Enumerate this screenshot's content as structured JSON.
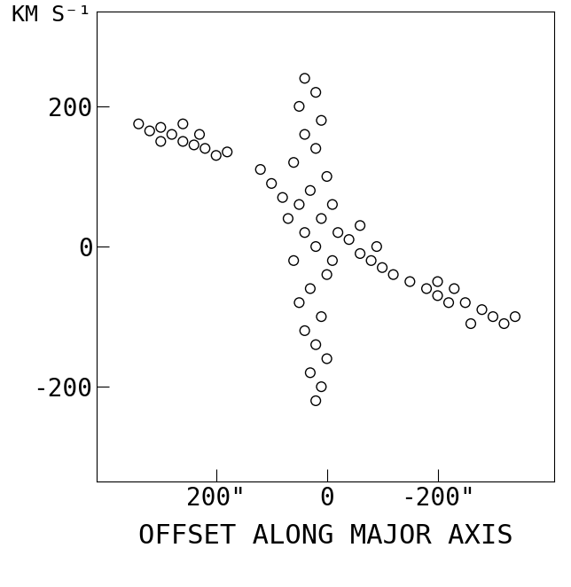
{
  "chart_data": {
    "type": "scatter",
    "x_label": "OFFSET ALONG MAJOR AXIS",
    "y_label": "KM S⁻¹",
    "color": "#000000",
    "marker": "o",
    "x": [
      340,
      320,
      300,
      280,
      260,
      240,
      220,
      200,
      180,
      300,
      260,
      230,
      40,
      20,
      50,
      10,
      40,
      20,
      60,
      0,
      30,
      50,
      10,
      40,
      20,
      60,
      0,
      30,
      50,
      10,
      40,
      20,
      0,
      30,
      10,
      20,
      -10,
      -10,
      70,
      120,
      100,
      80,
      -20,
      -40,
      -60,
      -80,
      -100,
      -60,
      -90,
      -120,
      -150,
      -180,
      -200,
      -220,
      -250,
      -280,
      -300,
      -320,
      -340,
      -200,
      -260,
      -230
    ],
    "values": [
      175,
      165,
      170,
      160,
      150,
      145,
      140,
      130,
      135,
      150,
      175,
      160,
      240,
      220,
      200,
      180,
      160,
      140,
      120,
      100,
      80,
      60,
      40,
      20,
      0,
      -20,
      -40,
      -60,
      -80,
      -100,
      -120,
      -140,
      -160,
      -180,
      -200,
      -220,
      60,
      -20,
      40,
      110,
      90,
      70,
      20,
      10,
      -10,
      -20,
      -30,
      30,
      0,
      -40,
      -50,
      -60,
      -70,
      -80,
      -80,
      -90,
      -100,
      -110,
      -100,
      -50,
      -110,
      -60
    ],
    "xlim": [
      415,
      -410
    ],
    "ylim": [
      -335,
      335
    ],
    "xticks": [
      {
        "value": 200,
        "label": "200\""
      },
      0,
      {
        "value": -200,
        "label": "-200\""
      }
    ],
    "yticks": [
      -200,
      0,
      200
    ],
    "grid": false
  }
}
